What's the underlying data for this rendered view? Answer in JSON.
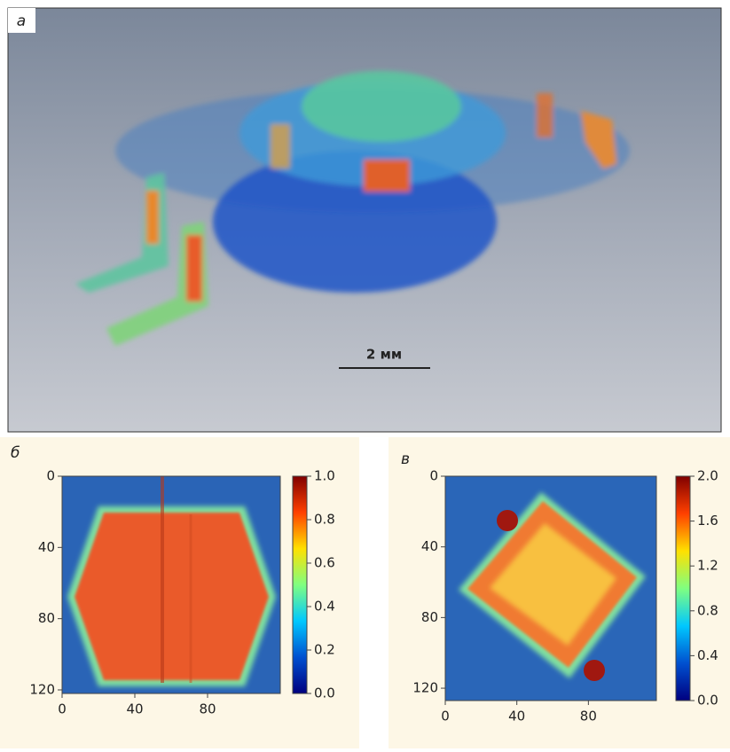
{
  "panel_a": {
    "label": "а",
    "scale_bar": "2 мм"
  },
  "chart_data": [
    {
      "type": "heatmap",
      "label": "б",
      "xlim": [
        0,
        120
      ],
      "xticks": [
        0,
        40,
        80
      ],
      "ylim": [
        0,
        122
      ],
      "yticks": [
        0,
        40,
        80,
        120
      ],
      "zlim": [
        0,
        1
      ],
      "zticks": [
        {
          "value": 0,
          "label": "0.0"
        },
        0.2,
        0.4,
        0.6,
        0.8,
        {
          "value": 1,
          "label": "1.0"
        }
      ],
      "colormap": [
        "#00007f",
        "#0050d0",
        "#00c8ff",
        "#80ff80",
        "#ffe000",
        "#ff4000",
        "#800000"
      ]
    },
    {
      "type": "heatmap",
      "label": "в",
      "xlim": [
        0,
        118
      ],
      "xticks": [
        0,
        40,
        80
      ],
      "ylim": [
        0,
        127
      ],
      "yticks": [
        0,
        40,
        80,
        120
      ],
      "zlim": [
        0,
        2
      ],
      "zticks": [
        {
          "value": 0,
          "label": "0.0"
        },
        0.4,
        0.8,
        1.2,
        1.6,
        {
          "value": 2,
          "label": "2.0"
        }
      ],
      "colormap": [
        "#00007f",
        "#0050d0",
        "#00c8ff",
        "#80ff80",
        "#ffe000",
        "#ff4000",
        "#800000"
      ]
    }
  ]
}
